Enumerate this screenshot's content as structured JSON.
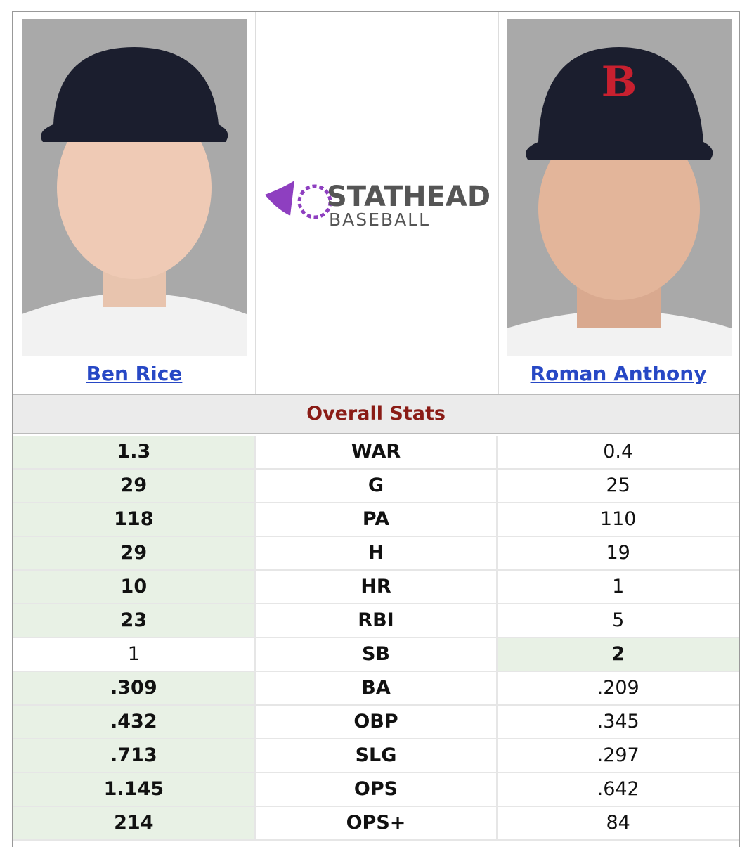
{
  "players": [
    {
      "name": "Ben Rice"
    },
    {
      "name": "Roman Anthony"
    }
  ],
  "logo": {
    "line1": "STATHEAD",
    "line2": "BASEBALL"
  },
  "section_title": "Overall Stats",
  "table": {
    "rows": [
      {
        "stat": "WAR",
        "left": "1.3",
        "right": "0.4",
        "highlight": "left"
      },
      {
        "stat": "G",
        "left": "29",
        "right": "25",
        "highlight": "left"
      },
      {
        "stat": "PA",
        "left": "118",
        "right": "110",
        "highlight": "left"
      },
      {
        "stat": "H",
        "left": "29",
        "right": "19",
        "highlight": "left"
      },
      {
        "stat": "HR",
        "left": "10",
        "right": "1",
        "highlight": "left"
      },
      {
        "stat": "RBI",
        "left": "23",
        "right": "5",
        "highlight": "left"
      },
      {
        "stat": "SB",
        "left": "1",
        "right": "2",
        "highlight": "right"
      },
      {
        "stat": "BA",
        "left": ".309",
        "right": ".209",
        "highlight": "left"
      },
      {
        "stat": "OBP",
        "left": ".432",
        "right": ".345",
        "highlight": "left"
      },
      {
        "stat": "SLG",
        "left": ".713",
        "right": ".297",
        "highlight": "left"
      },
      {
        "stat": "OPS",
        "left": "1.145",
        "right": ".642",
        "highlight": "left"
      },
      {
        "stat": "OPS+",
        "left": "214",
        "right": "84",
        "highlight": "left"
      }
    ]
  }
}
